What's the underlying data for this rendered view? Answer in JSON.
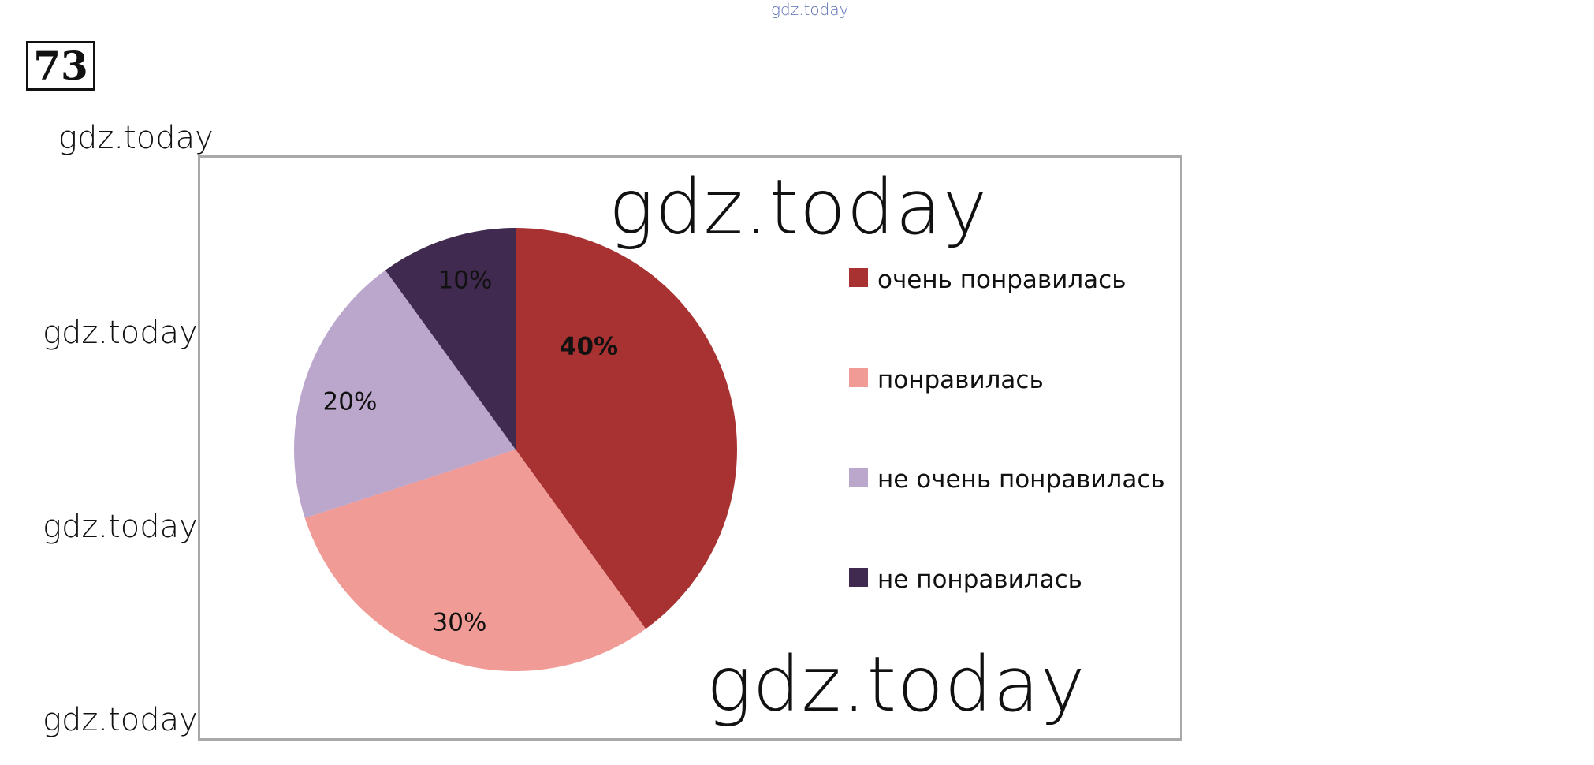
{
  "problem_number": "73",
  "watermark_text": "gdz.today",
  "colors": {
    "very_liked": "#a83232",
    "liked": "#f09b96",
    "not_very_liked": "#bba6cc",
    "not_liked": "#402a4f"
  },
  "chart_data": {
    "type": "pie",
    "slices": [
      {
        "name": "очень понравилась",
        "value": 40,
        "label": "40%",
        "color": "#a83232",
        "bold": true
      },
      {
        "name": "понравилась",
        "value": 30,
        "label": "30%",
        "color": "#f09b96",
        "bold": false
      },
      {
        "name": "не очень понравилась",
        "value": 20,
        "label": "20%",
        "color": "#bba6cc",
        "bold": false
      },
      {
        "name": "не понравилась",
        "value": 10,
        "label": "10%",
        "color": "#402a4f",
        "bold": false
      }
    ],
    "legend": {
      "placement": "right",
      "entries": [
        "очень понравилась",
        "понравилась",
        "не очень понравилась",
        "не понравилась"
      ]
    }
  }
}
